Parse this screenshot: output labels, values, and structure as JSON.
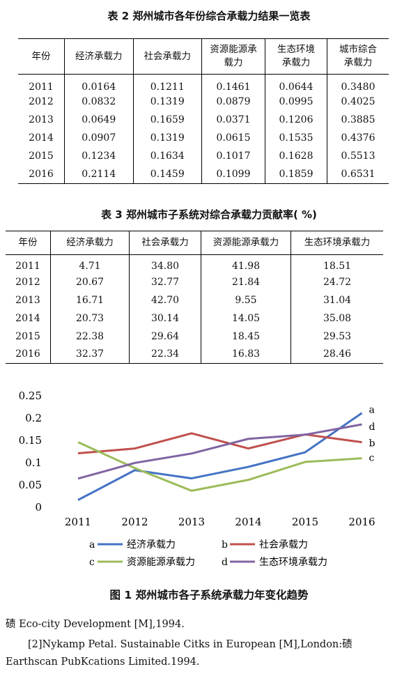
{
  "table2": {
    "caption": "表 2  郑州城市各年份综合承载力结果一览表",
    "headers": [
      "年份",
      "经济承载力",
      "社会承载力",
      "资源能源承载力",
      "生态环境承载力",
      "城市综合承载力"
    ],
    "rows": [
      [
        "2011",
        "0.0164",
        "0.1211",
        "0.1461",
        "0.0644",
        "0.3480"
      ],
      [
        "2012",
        "0.0832",
        "0.1319",
        "0.0879",
        "0.0995",
        "0.4025"
      ],
      [
        "2013",
        "0.0649",
        "0.1659",
        "0.0371",
        "0.1206",
        "0.3885"
      ],
      [
        "2014",
        "0.0907",
        "0.1319",
        "0.0615",
        "0.1535",
        "0.4376"
      ],
      [
        "2015",
        "0.1234",
        "0.1634",
        "0.1017",
        "0.1628",
        "0.5513"
      ],
      [
        "2016",
        "0.2114",
        "0.1459",
        "0.1099",
        "0.1859",
        "0.6531"
      ]
    ]
  },
  "table3": {
    "caption": "表 3  郑州城市子系统对综合承载力贡献率( %)",
    "headers": [
      "年份",
      "经济承载力",
      "社会承载力",
      "资源能源承载力",
      "生态环境承载力"
    ],
    "rows": [
      [
        "2011",
        "4.71",
        "34.80",
        "41.98",
        "18.51"
      ],
      [
        "2012",
        "20.67",
        "32.77",
        "21.84",
        "24.72"
      ],
      [
        "2013",
        "16.71",
        "42.70",
        "9.55",
        "31.04"
      ],
      [
        "2014",
        "20.73",
        "30.14",
        "14.05",
        "35.08"
      ],
      [
        "2015",
        "22.38",
        "29.64",
        "18.45",
        "29.53"
      ],
      [
        "2016",
        "32.37",
        "22.34",
        "16.83",
        "28.46"
      ]
    ]
  },
  "chart_data": {
    "type": "line",
    "title": "图 1  郑州城市各子系统承载力年变化趋势",
    "xlabel": "",
    "ylabel": "",
    "x": [
      "2011",
      "2012",
      "2013",
      "2014",
      "2015",
      "2016"
    ],
    "ylim": [
      0,
      0.25
    ],
    "yticks": [
      "0",
      "0.05",
      "0.1",
      "0.15",
      "0.2",
      "0.25"
    ],
    "grid": false,
    "legend_position": "bottom",
    "series": [
      {
        "name": "经济承载力",
        "key": "a",
        "color": "#4472c4",
        "values": [
          0.0164,
          0.0832,
          0.0649,
          0.0907,
          0.1234,
          0.2114
        ]
      },
      {
        "name": "社会承载力",
        "key": "b",
        "color": "#c0504d",
        "values": [
          0.1211,
          0.1319,
          0.1659,
          0.1319,
          0.1634,
          0.1459
        ]
      },
      {
        "name": "资源能源承载力",
        "key": "c",
        "color": "#9bbb59",
        "values": [
          0.1461,
          0.0879,
          0.0371,
          0.0615,
          0.1017,
          0.1099
        ]
      },
      {
        "name": "生态环境承载力",
        "key": "d",
        "color": "#8064a2",
        "values": [
          0.0644,
          0.0995,
          0.1206,
          0.1535,
          0.1628,
          0.1859
        ]
      }
    ]
  },
  "references": {
    "line1": "碛 Eco-city Development [M],1994.",
    "line2": "[2]Nykamp Petal. Sustainable Citks in European [M],London:碛",
    "line3": "Earthscan PubKcations Limited.1994."
  }
}
